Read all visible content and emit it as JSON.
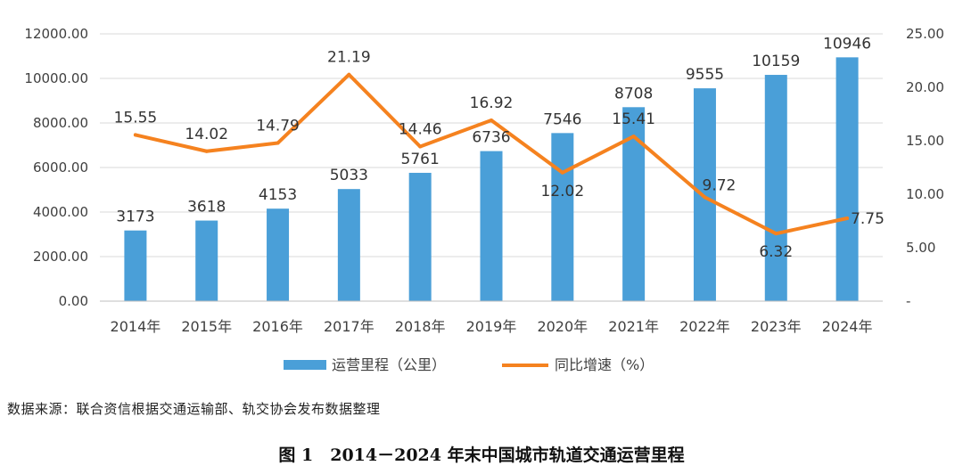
{
  "source_note": "数据来源：联合资信根据交通运输部、轨交协会发布数据整理",
  "figure_caption": "图 1　2014－2024 年末中国城市轨道交通运营里程",
  "colors": {
    "bar": "#4A9FD8",
    "line": "#F5821F",
    "axis_text": "#404040",
    "grid": "#D9D9D9"
  },
  "chart_data": {
    "type": "bar",
    "categories": [
      "2014年",
      "2015年",
      "2016年",
      "2017年",
      "2018年",
      "2019年",
      "2020年",
      "2021年",
      "2022年",
      "2023年",
      "2024年"
    ],
    "series": [
      {
        "name": "运营里程（公里）",
        "type": "bar",
        "axis": "left",
        "values": [
          3173,
          3618,
          4153,
          5033,
          5761,
          6736,
          7546,
          8708,
          9555,
          10159,
          10946
        ],
        "labels": [
          "3173",
          "3618",
          "4153",
          "5033",
          "5761",
          "6736",
          "7546",
          "8708",
          "9555",
          "10159",
          "10946"
        ]
      },
      {
        "name": "同比增速（%）",
        "type": "line",
        "axis": "right",
        "values": [
          15.55,
          14.02,
          14.79,
          21.19,
          14.46,
          16.92,
          12.02,
          15.41,
          9.72,
          6.32,
          7.75
        ],
        "labels": [
          "15.55",
          "14.02",
          "14.79",
          "21.19",
          "14.46",
          "16.92",
          "12.02",
          "15.41",
          "9.72",
          "6.32",
          "7.75"
        ]
      }
    ],
    "y_left": {
      "ylim": [
        0,
        12000
      ],
      "ticks": [
        "0.00",
        "2000.00",
        "4000.00",
        "6000.00",
        "8000.00",
        "10000.00",
        "12000.00"
      ]
    },
    "y_right": {
      "ylim": [
        0,
        25
      ],
      "ticks": [
        "-",
        "5.00",
        "10.00",
        "15.00",
        "20.00",
        "25.00"
      ]
    },
    "grid": true,
    "legend_position": "bottom"
  }
}
